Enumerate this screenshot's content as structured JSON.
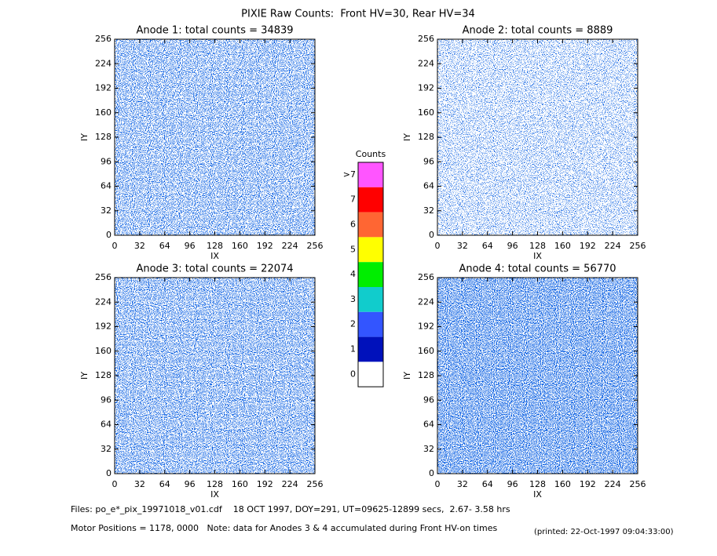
{
  "title": "PIXIE Raw Counts:  Front HV=30, Rear HV=34",
  "chart_data": [
    {
      "type": "heatmap",
      "title": "Anode 1: total counts = 34839",
      "xlabel": "IX",
      "ylabel": "IY",
      "xlim": [
        0,
        256
      ],
      "ylim": [
        0,
        256
      ],
      "xticks": [
        0,
        32,
        64,
        96,
        128,
        160,
        192,
        224,
        256
      ],
      "yticks": [
        0,
        32,
        64,
        96,
        128,
        160,
        192,
        224,
        256
      ]
    },
    {
      "type": "heatmap",
      "title": "Anode 2: total counts = 8889",
      "xlabel": "IX",
      "ylabel": "IY",
      "xlim": [
        0,
        256
      ],
      "ylim": [
        0,
        256
      ],
      "xticks": [
        0,
        32,
        64,
        96,
        128,
        160,
        192,
        224,
        256
      ],
      "yticks": [
        0,
        32,
        64,
        96,
        128,
        160,
        192,
        224,
        256
      ]
    },
    {
      "type": "heatmap",
      "title": "Anode 3: total counts = 22074",
      "xlabel": "IX",
      "ylabel": "IY",
      "xlim": [
        0,
        256
      ],
      "ylim": [
        0,
        256
      ],
      "xticks": [
        0,
        32,
        64,
        96,
        128,
        160,
        192,
        224,
        256
      ],
      "yticks": [
        0,
        32,
        64,
        96,
        128,
        160,
        192,
        224,
        256
      ]
    },
    {
      "type": "heatmap",
      "title": "Anode 4: total counts = 56770",
      "xlabel": "IX",
      "ylabel": "IY",
      "xlim": [
        0,
        256
      ],
      "ylim": [
        0,
        256
      ],
      "xticks": [
        0,
        32,
        64,
        96,
        128,
        160,
        192,
        224,
        256
      ],
      "yticks": [
        0,
        32,
        64,
        96,
        128,
        160,
        192,
        224,
        256
      ]
    }
  ],
  "colorbar": {
    "title": "Counts",
    "labels": [
      ">7",
      "7",
      "6",
      "5",
      "4",
      "3",
      "2",
      "1",
      "0"
    ],
    "colors": [
      "#ff55ff",
      "#ff0000",
      "#ff6633",
      "#ffff00",
      "#00ee00",
      "#11cccc",
      "#3355ff",
      "#0011bb",
      "#ffffff"
    ]
  },
  "footer": {
    "files": "Files: po_e*_pix_19971018_v01.cdf    18 OCT 1997, DOY=291, UT=09625-12899 secs,  2.67- 3.58 hrs",
    "motor": "Motor Positions = 1178, 0000   Note: data for Anodes 3 & 4 accumulated during Front HV-on times",
    "printed": "(printed: 22-Oct-1997 09:04:33:00)"
  }
}
